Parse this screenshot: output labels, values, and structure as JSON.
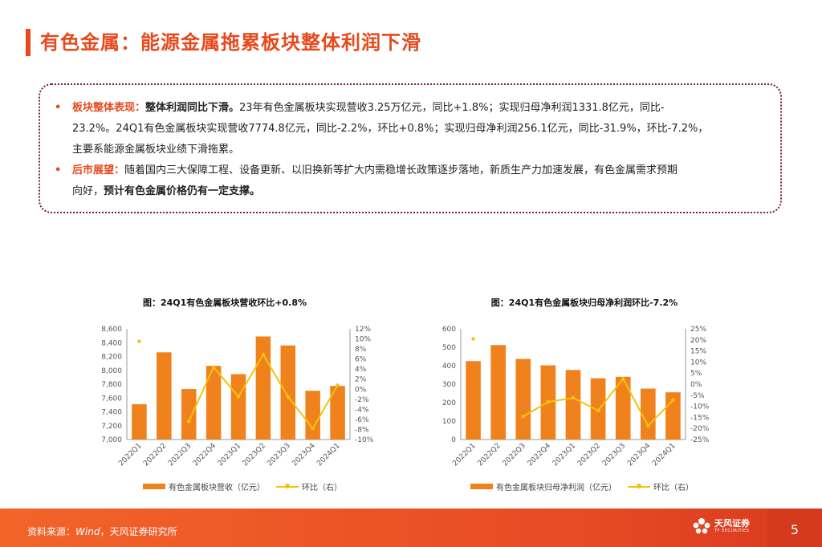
{
  "title": "有色金属：能源金属拖累板块整体利润下滑",
  "summary": {
    "b1": {
      "bullet": "•",
      "label": "板块整体表现：",
      "bold_lead": "整体利润同比下滑。",
      "line1": "23年有色金属板块实现营收3.25万亿元，同比+1.8%；实现归母净利润1331.8亿元，同比-",
      "line2": "23.2%。24Q1有色金属板块实现营收7774.8亿元，同比-2.2%，环比+0.8%；实现归母净利润256.1亿元，同比-31.9%，环比-7.2%，",
      "line3": "主要系能源金属板块业绩下滑拖累。"
    },
    "b2": {
      "bullet": "•",
      "label": "后市展望：",
      "line1": "随着国内三大保障工程、设备更新、以旧换新等扩大内需稳增长政策逐步落地，新质生产力加速发展，有色金属需求预期",
      "line2_plain": "向好，",
      "line2_bold": "预计有色金属价格仍有一定支撑。"
    }
  },
  "chart_data": [
    {
      "type": "bar",
      "title": "图：24Q1有色金属板块营收环比+0.8%",
      "categories": [
        "2022Q1",
        "2022Q2",
        "2022Q3",
        "2022Q4",
        "2023Q1",
        "2023Q2",
        "2023Q3",
        "2023Q4",
        "2024Q1"
      ],
      "series": [
        {
          "name": "有色金属板块营收（亿元）",
          "type": "bar",
          "axis": "left",
          "values": [
            7510,
            8260,
            7730,
            8065,
            7945,
            8490,
            8360,
            7705,
            7775
          ]
        },
        {
          "name": "环比（右）",
          "type": "line",
          "axis": "right",
          "values": [
            9.5,
            null,
            -6.4,
            4.4,
            -1.5,
            6.9,
            -1.5,
            -7.8,
            0.8
          ]
        }
      ],
      "ylim": [
        7000,
        8600
      ],
      "yticks": [
        "7,000",
        "7,200",
        "7,400",
        "7,600",
        "7,800",
        "8,000",
        "8,200",
        "8,400",
        "8,600"
      ],
      "y2lim": [
        -10,
        12
      ],
      "y2ticks": [
        "-10%",
        "-8%",
        "-6%",
        "-4%",
        "-2%",
        "0%",
        "2%",
        "4%",
        "6%",
        "8%",
        "10%",
        "12%"
      ],
      "legend": "bottom",
      "colors": {
        "bar": "#f0821e",
        "line": "#f4c20d"
      }
    },
    {
      "type": "bar",
      "title": "图：24Q1有色金属板块归母净利润环比-7.2%",
      "categories": [
        "2022Q1",
        "2022Q2",
        "2022Q3",
        "2022Q4",
        "2023Q1",
        "2023Q2",
        "2023Q3",
        "2023Q4",
        "2024Q1"
      ],
      "series": [
        {
          "name": "有色金属板块归母净利润（亿元）",
          "type": "bar",
          "axis": "left",
          "values": [
            425,
            512,
            437,
            402,
            377,
            332,
            340,
            276,
            256
          ]
        },
        {
          "name": "环比（右）",
          "type": "line",
          "axis": "right",
          "values": [
            20.5,
            null,
            -14.6,
            -8.0,
            -6.2,
            -11.9,
            2.4,
            -18.8,
            -7.2
          ]
        }
      ],
      "ylim": [
        0,
        600
      ],
      "yticks": [
        "0",
        "100",
        "200",
        "300",
        "400",
        "500",
        "600"
      ],
      "y2lim": [
        -25,
        25
      ],
      "y2ticks": [
        "-25%",
        "-20%",
        "-15%",
        "-10%",
        "-5%",
        "0%",
        "5%",
        "10%",
        "15%",
        "20%",
        "25%"
      ],
      "legend": "bottom",
      "colors": {
        "bar": "#f0821e",
        "line": "#f4c20d"
      }
    }
  ],
  "footer": {
    "source_prefix": "资料来源：",
    "source_name": "Wind",
    "source_suffix": "，天风证券研究所",
    "logo_cn": "天风证券",
    "logo_en": "TF SECURITIES",
    "page_number": "5"
  },
  "icons": {
    "logo": "tf-securities-logo-icon"
  }
}
